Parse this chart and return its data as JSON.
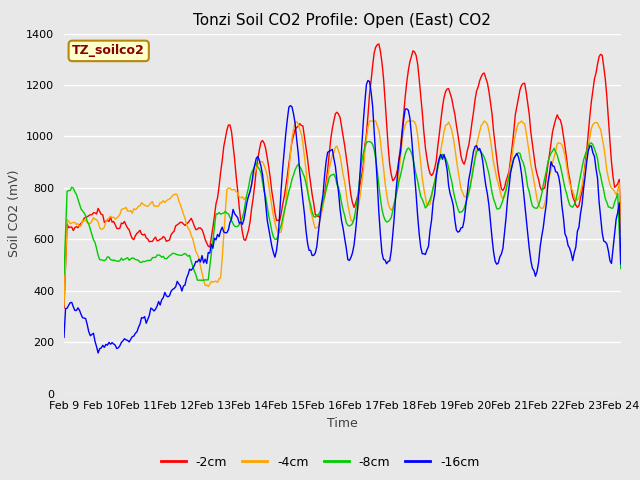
{
  "title": "Tonzi Soil CO2 Profile: Open (East) CO2",
  "ylabel": "Soil CO2 (mV)",
  "xlabel": "Time",
  "annotation": "TZ_soilco2",
  "annotation_color": "#8B0000",
  "annotation_bg": "#FFFFCC",
  "annotation_border": "#B8860B",
  "ylim": [
    0,
    1400
  ],
  "yticks": [
    0,
    200,
    400,
    600,
    800,
    1000,
    1200,
    1400
  ],
  "xtick_labels": [
    "Feb 9",
    "Feb 10",
    "Feb 11",
    "Feb 12",
    "Feb 13",
    "Feb 14",
    "Feb 15",
    "Feb 16",
    "Feb 17",
    "Feb 18",
    "Feb 19",
    "Feb 20",
    "Feb 21",
    "Feb 22",
    "Feb 23",
    "Feb 24"
  ],
  "legend_labels": [
    "-2cm",
    "-4cm",
    "-8cm",
    "-16cm"
  ],
  "legend_colors": [
    "#FF0000",
    "#FFA500",
    "#00CC00",
    "#0000FF"
  ],
  "plot_bg": "#E8E8E8",
  "grid_color": "#FFFFFF",
  "title_fontsize": 11,
  "label_fontsize": 9,
  "tick_fontsize": 8
}
